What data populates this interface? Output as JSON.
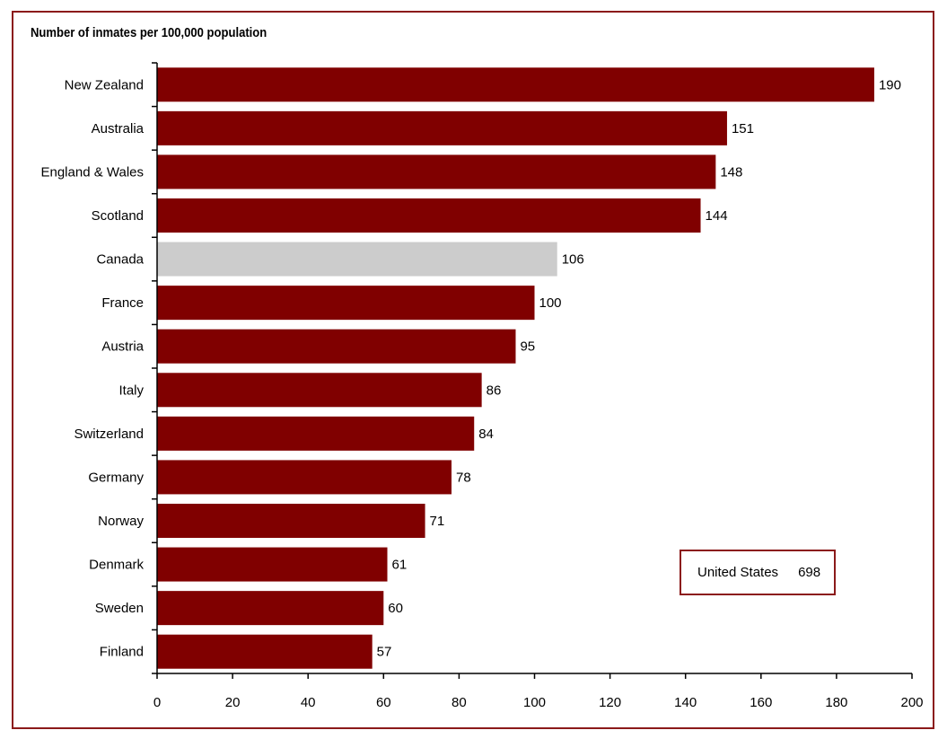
{
  "chart_data": {
    "type": "bar",
    "orientation": "horizontal",
    "title": "Number of inmates per 100,000 population",
    "categories": [
      "New Zealand",
      "Australia",
      "England & Wales",
      "Scotland",
      "Canada",
      "France",
      "Austria",
      "Italy",
      "Switzerland",
      "Germany",
      "Norway",
      "Denmark",
      "Sweden",
      "Finland"
    ],
    "values": [
      190,
      151,
      148,
      144,
      106,
      100,
      95,
      86,
      84,
      78,
      71,
      61,
      60,
      57
    ],
    "highlight": "Canada",
    "xlim": [
      0,
      200
    ],
    "xticks": [
      0,
      20,
      40,
      60,
      80,
      100,
      120,
      140,
      160,
      180,
      200
    ],
    "grid": false,
    "colors": {
      "bar": "#800000",
      "highlight": "#cccccc",
      "frame": "#8b1a1a"
    },
    "annotation": {
      "label": "United States",
      "value": "698"
    }
  }
}
